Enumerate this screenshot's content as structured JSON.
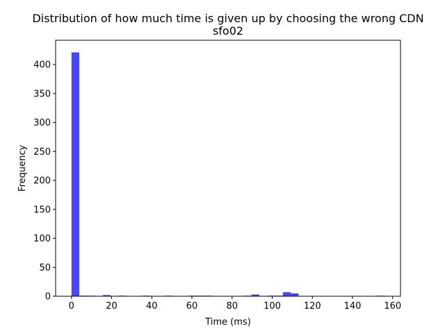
{
  "chart_data": {
    "type": "bar",
    "title": "Distribution of how much time is given up by choosing the wrong CDN",
    "subtitle": "sfo02",
    "xlabel": "Time (ms)",
    "ylabel": "Frequency",
    "xlim": [
      -7.9,
      163.9
    ],
    "ylim": [
      0,
      442
    ],
    "xticks": [
      0,
      20,
      40,
      60,
      80,
      100,
      120,
      140,
      160
    ],
    "yticks": [
      0,
      50,
      100,
      150,
      200,
      250,
      300,
      350,
      400
    ],
    "grid": false,
    "bar_color": "#4646ff",
    "bin_width": 3.9,
    "bins": [
      {
        "x0": 0.0,
        "value": 421
      },
      {
        "x0": 3.9,
        "value": 1
      },
      {
        "x0": 7.8,
        "value": 1
      },
      {
        "x0": 15.6,
        "value": 2
      },
      {
        "x0": 23.4,
        "value": 1
      },
      {
        "x0": 35.1,
        "value": 1
      },
      {
        "x0": 46.8,
        "value": 1
      },
      {
        "x0": 58.5,
        "value": 1
      },
      {
        "x0": 62.4,
        "value": 1
      },
      {
        "x0": 66.3,
        "value": 1
      },
      {
        "x0": 85.8,
        "value": 1
      },
      {
        "x0": 89.7,
        "value": 3
      },
      {
        "x0": 97.5,
        "value": 1
      },
      {
        "x0": 101.4,
        "value": 1
      },
      {
        "x0": 105.3,
        "value": 7
      },
      {
        "x0": 109.2,
        "value": 5
      },
      {
        "x0": 152.1,
        "value": 1
      }
    ]
  }
}
